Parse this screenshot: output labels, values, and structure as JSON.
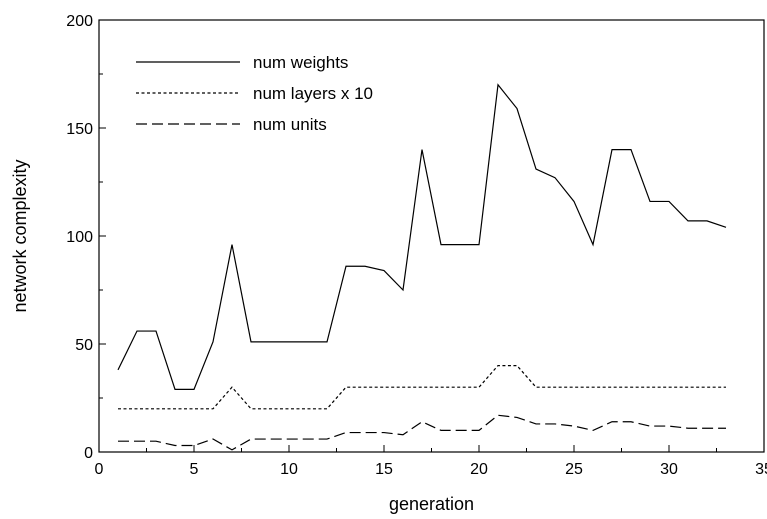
{
  "chart_data": {
    "type": "line",
    "title": "",
    "xlabel": "generation",
    "ylabel": "network complexity",
    "xlim": [
      0,
      35
    ],
    "ylim": [
      0,
      200
    ],
    "xticks": [
      0,
      5,
      10,
      15,
      20,
      25,
      30,
      35
    ],
    "yticks": [
      0,
      50,
      100,
      150,
      200
    ],
    "xtick_labels": [
      "0",
      "5",
      "10",
      "15",
      "20",
      "25",
      "30",
      "35"
    ],
    "ytick_labels": [
      "0",
      "50",
      "100",
      "150",
      "200"
    ],
    "grid": false,
    "legend_position": "top-left",
    "x": [
      1,
      2,
      3,
      4,
      5,
      6,
      7,
      8,
      9,
      10,
      11,
      12,
      13,
      14,
      15,
      16,
      17,
      18,
      19,
      20,
      21,
      22,
      23,
      24,
      25,
      26,
      27,
      28,
      29,
      30,
      31,
      32,
      33
    ],
    "series": [
      {
        "name": "num weights",
        "style": "solid",
        "values": [
          38,
          56,
          56,
          29,
          29,
          51,
          96,
          51,
          51,
          51,
          51,
          51,
          86,
          86,
          84,
          75,
          140,
          96,
          96,
          96,
          170,
          159,
          131,
          127,
          116,
          96,
          140,
          140,
          116,
          116,
          107,
          107,
          104
        ]
      },
      {
        "name": "num layers x 10",
        "style": "dotted",
        "values": [
          20,
          20,
          20,
          20,
          20,
          20,
          30,
          20,
          20,
          20,
          20,
          20,
          30,
          30,
          30,
          30,
          30,
          30,
          30,
          30,
          40,
          40,
          30,
          30,
          30,
          30,
          30,
          30,
          30,
          30,
          30,
          30,
          30
        ]
      },
      {
        "name": "num units",
        "style": "dashed",
        "values": [
          5,
          5,
          5,
          3,
          3,
          6,
          1,
          6,
          6,
          6,
          6,
          6,
          9,
          9,
          9,
          8,
          14,
          10,
          10,
          10,
          17,
          16,
          13,
          13,
          12,
          10,
          14,
          14,
          12,
          12,
          11,
          11,
          11
        ]
      }
    ]
  }
}
